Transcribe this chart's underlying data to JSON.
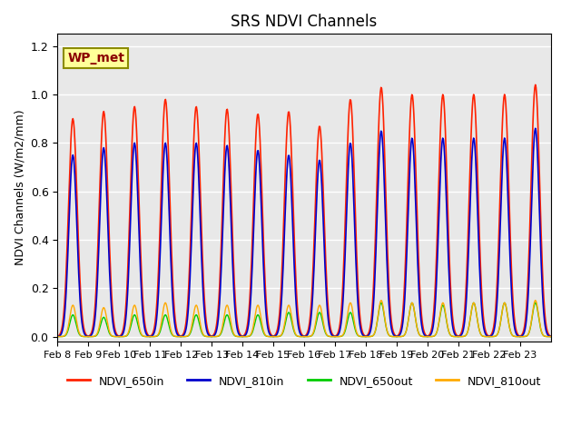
{
  "title": "SRS NDVI Channels",
  "ylabel": "NDVI Channels (W/m2/mm)",
  "annotation_text": "WP_met",
  "annotation_color": "#8B0000",
  "annotation_bg": "#FFFF99",
  "annotation_border": "#8B8B00",
  "ylim": [
    -0.02,
    1.25
  ],
  "background_color": "#E8E8E8",
  "grid_color": "white",
  "line_colors": {
    "NDVI_650in": "#FF2200",
    "NDVI_810in": "#0000CC",
    "NDVI_650out": "#00CC00",
    "NDVI_810out": "#FFAA00"
  },
  "x_tick_labels": [
    "Feb 8",
    "Feb 9",
    "Feb 10",
    "Feb 11",
    "Feb 12",
    "Feb 13",
    "Feb 14",
    "Feb 15",
    "Feb 16",
    "Feb 17",
    "Feb 18",
    "Feb 19",
    "Feb 20",
    "Feb 21",
    "Feb 22",
    "Feb 23"
  ],
  "n_days": 16,
  "peak_650in": [
    0.9,
    0.93,
    0.95,
    0.98,
    0.95,
    0.94,
    0.92,
    0.93,
    0.87,
    0.98,
    1.03,
    1.0,
    1.0,
    1.0,
    1.0,
    1.04
  ],
  "peak_810in": [
    0.75,
    0.78,
    0.8,
    0.8,
    0.8,
    0.79,
    0.77,
    0.75,
    0.73,
    0.8,
    0.85,
    0.82,
    0.82,
    0.82,
    0.82,
    0.86
  ],
  "peak_650out": [
    0.09,
    0.08,
    0.09,
    0.09,
    0.09,
    0.09,
    0.09,
    0.1,
    0.1,
    0.1,
    0.14,
    0.14,
    0.13,
    0.14,
    0.14,
    0.14
  ],
  "peak_810out": [
    0.13,
    0.12,
    0.13,
    0.14,
    0.13,
    0.13,
    0.13,
    0.13,
    0.13,
    0.14,
    0.15,
    0.14,
    0.14,
    0.14,
    0.14,
    0.15
  ]
}
